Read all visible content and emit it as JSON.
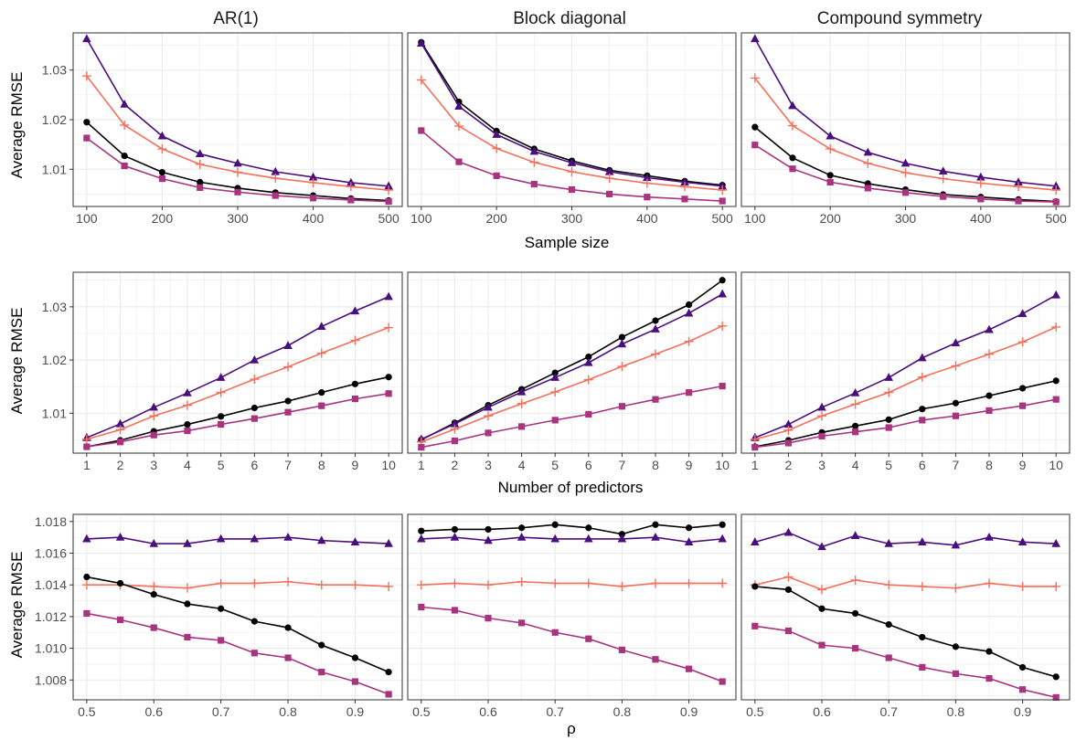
{
  "figure": {
    "column_titles": [
      "AR(1)",
      "Block diagonal",
      "Compound symmetry"
    ],
    "y_axis_title": "Average RMSE"
  },
  "colors": {
    "black_circle": "#000000",
    "purple_triangle": "#4b0f7d",
    "salmon_plus": "#f4705c",
    "magenta_square": "#a8347f",
    "grid": "#ebebeb",
    "panel_border": "#333333"
  },
  "chart_data": [
    {
      "type": "line",
      "row": 0,
      "xlabel": "Sample size",
      "ylabel": "Average RMSE",
      "x": [
        100,
        150,
        200,
        250,
        300,
        350,
        400,
        450,
        500
      ],
      "x_ticks": [
        100,
        200,
        300,
        400,
        500
      ],
      "x_tick_labels": [
        "100",
        "200",
        "300",
        "400",
        "500"
      ],
      "xlim": [
        100,
        500
      ],
      "y_ticks": [
        1.01,
        1.02,
        1.03
      ],
      "y_tick_labels": [
        "1.01",
        "1.02",
        "1.03"
      ],
      "ylim": [
        1.0025,
        1.0375
      ],
      "panels": [
        {
          "title": "AR(1)",
          "series": [
            {
              "marker": "triangle",
              "color": "#4b0f7d",
              "values": [
                1.0363,
                1.0231,
                1.0167,
                1.0131,
                1.0112,
                1.0095,
                1.0084,
                1.0073,
                1.0066
              ]
            },
            {
              "marker": "plus",
              "color": "#f4705c",
              "values": [
                1.0288,
                1.0189,
                1.0141,
                1.011,
                1.0094,
                1.0082,
                1.0073,
                1.0065,
                1.0058
              ]
            },
            {
              "marker": "circle",
              "color": "#000000",
              "values": [
                1.0195,
                1.0127,
                1.0094,
                1.0074,
                1.0062,
                1.0053,
                1.0047,
                1.0041,
                1.0037
              ]
            },
            {
              "marker": "square",
              "color": "#a8347f",
              "values": [
                1.0163,
                1.0107,
                1.0081,
                1.0063,
                1.0054,
                1.0047,
                1.0042,
                1.0038,
                1.0035
              ]
            }
          ]
        },
        {
          "title": "Block diagonal",
          "series": [
            {
              "marker": "circle",
              "color": "#000000",
              "values": [
                1.0356,
                1.0236,
                1.0177,
                1.0141,
                1.0117,
                1.0098,
                1.0087,
                1.0076,
                1.0068
              ]
            },
            {
              "marker": "triangle",
              "color": "#4b0f7d",
              "values": [
                1.0354,
                1.0227,
                1.017,
                1.0136,
                1.0113,
                1.0095,
                1.0083,
                1.0074,
                1.0066
              ]
            },
            {
              "marker": "plus",
              "color": "#f4705c",
              "values": [
                1.028,
                1.0187,
                1.0142,
                1.0114,
                1.0095,
                1.0082,
                1.0072,
                1.0065,
                1.0058
              ]
            },
            {
              "marker": "square",
              "color": "#a8347f",
              "values": [
                1.0178,
                1.0115,
                1.0087,
                1.007,
                1.0059,
                1.005,
                1.0044,
                1.004,
                1.0036
              ]
            }
          ]
        },
        {
          "title": "Compound symmetry",
          "series": [
            {
              "marker": "triangle",
              "color": "#4b0f7d",
              "values": [
                1.0363,
                1.0228,
                1.0167,
                1.0134,
                1.0112,
                1.0096,
                1.0084,
                1.0074,
                1.0066
              ]
            },
            {
              "marker": "plus",
              "color": "#f4705c",
              "values": [
                1.0284,
                1.0188,
                1.0141,
                1.0112,
                1.0093,
                1.0081,
                1.0072,
                1.0065,
                1.0058
              ]
            },
            {
              "marker": "circle",
              "color": "#000000",
              "values": [
                1.0185,
                1.0123,
                1.0088,
                1.0071,
                1.0059,
                1.0049,
                1.0044,
                1.0039,
                1.0035
              ]
            },
            {
              "marker": "square",
              "color": "#a8347f",
              "values": [
                1.0149,
                1.0101,
                1.0074,
                1.0062,
                1.0053,
                1.0045,
                1.004,
                1.0036,
                1.0034
              ]
            }
          ]
        }
      ]
    },
    {
      "type": "line",
      "row": 1,
      "xlabel": "Number of predictors",
      "ylabel": "Average RMSE",
      "x": [
        1,
        2,
        3,
        4,
        5,
        6,
        7,
        8,
        9,
        10
      ],
      "x_ticks": [
        1,
        2,
        3,
        4,
        5,
        6,
        7,
        8,
        9,
        10
      ],
      "x_tick_labels": [
        "1",
        "2",
        "3",
        "4",
        "5",
        "6",
        "7",
        "8",
        "9",
        "10"
      ],
      "xlim": [
        1,
        10
      ],
      "y_ticks": [
        1.01,
        1.02,
        1.03
      ],
      "y_tick_labels": [
        "1.01",
        "1.02",
        "1.03"
      ],
      "ylim": [
        1.0025,
        1.0365
      ],
      "panels": [
        {
          "series": [
            {
              "marker": "triangle",
              "color": "#4b0f7d",
              "values": [
                1.0054,
                1.008,
                1.0111,
                1.0138,
                1.0167,
                1.02,
                1.0227,
                1.0263,
                1.0292,
                1.0319
              ]
            },
            {
              "marker": "plus",
              "color": "#f4705c",
              "values": [
                1.0051,
                1.0069,
                1.0095,
                1.0115,
                1.0139,
                1.0164,
                1.0187,
                1.0213,
                1.0237,
                1.0261
              ]
            },
            {
              "marker": "circle",
              "color": "#000000",
              "values": [
                1.0037,
                1.0049,
                1.0066,
                1.0079,
                1.0094,
                1.011,
                1.0123,
                1.0139,
                1.0155,
                1.0168
              ]
            },
            {
              "marker": "square",
              "color": "#a8347f",
              "values": [
                1.0037,
                1.0046,
                1.0059,
                1.0067,
                1.0079,
                1.009,
                1.0102,
                1.0114,
                1.0127,
                1.0137
              ]
            }
          ]
        },
        {
          "series": [
            {
              "marker": "circle",
              "color": "#000000",
              "values": [
                1.005,
                1.0082,
                1.0115,
                1.0145,
                1.0176,
                1.0206,
                1.0243,
                1.0274,
                1.0304,
                1.035
              ]
            },
            {
              "marker": "triangle",
              "color": "#4b0f7d",
              "values": [
                1.0051,
                1.008,
                1.0111,
                1.014,
                1.0167,
                1.0195,
                1.023,
                1.0258,
                1.0288,
                1.0324
              ]
            },
            {
              "marker": "plus",
              "color": "#f4705c",
              "values": [
                1.0046,
                1.007,
                1.0095,
                1.0118,
                1.014,
                1.0163,
                1.0188,
                1.0211,
                1.0235,
                1.0264
              ]
            },
            {
              "marker": "square",
              "color": "#a8347f",
              "values": [
                1.0036,
                1.0048,
                1.0063,
                1.0075,
                1.0087,
                1.0098,
                1.0113,
                1.0126,
                1.0139,
                1.0151
              ]
            }
          ]
        },
        {
          "series": [
            {
              "marker": "triangle",
              "color": "#4b0f7d",
              "values": [
                1.0054,
                1.0079,
                1.0111,
                1.0138,
                1.0167,
                1.0204,
                1.0232,
                1.0257,
                1.0287,
                1.0322
              ]
            },
            {
              "marker": "plus",
              "color": "#f4705c",
              "values": [
                1.0051,
                1.0068,
                1.0095,
                1.0117,
                1.0139,
                1.0168,
                1.0189,
                1.0211,
                1.0234,
                1.0262
              ]
            },
            {
              "marker": "circle",
              "color": "#000000",
              "values": [
                1.0037,
                1.0049,
                1.0064,
                1.0076,
                1.0088,
                1.0108,
                1.0119,
                1.0133,
                1.0147,
                1.0161
              ]
            },
            {
              "marker": "square",
              "color": "#a8347f",
              "values": [
                1.0036,
                1.0044,
                1.0057,
                1.0065,
                1.0073,
                1.0087,
                1.0095,
                1.0105,
                1.0114,
                1.0126
              ]
            }
          ]
        }
      ]
    },
    {
      "type": "line",
      "row": 2,
      "xlabel": "ρ",
      "ylabel": "Average RMSE",
      "x": [
        0.5,
        0.55,
        0.6,
        0.65,
        0.7,
        0.75,
        0.8,
        0.85,
        0.9,
        0.95
      ],
      "x_ticks": [
        0.5,
        0.6,
        0.7,
        0.8,
        0.9
      ],
      "x_tick_labels": [
        "0.5",
        "0.6",
        "0.7",
        "0.8",
        "0.9"
      ],
      "xlim": [
        0.5,
        0.95
      ],
      "y_ticks": [
        1.008,
        1.01,
        1.012,
        1.014,
        1.016,
        1.018
      ],
      "y_tick_labels": [
        "1.008",
        "1.010",
        "1.012",
        "1.014",
        "1.016",
        "1.018"
      ],
      "ylim": [
        1.00675,
        1.01845
      ],
      "panels": [
        {
          "series": [
            {
              "marker": "triangle",
              "color": "#4b0f7d",
              "values": [
                1.0169,
                1.017,
                1.0166,
                1.0166,
                1.0169,
                1.0169,
                1.017,
                1.0168,
                1.0167,
                1.0166
              ]
            },
            {
              "marker": "plus",
              "color": "#f4705c",
              "values": [
                1.014,
                1.014,
                1.0139,
                1.0138,
                1.0141,
                1.0141,
                1.0142,
                1.014,
                1.014,
                1.0139
              ]
            },
            {
              "marker": "circle",
              "color": "#000000",
              "values": [
                1.0145,
                1.0141,
                1.0134,
                1.0128,
                1.0125,
                1.0117,
                1.0113,
                1.0102,
                1.0094,
                1.0085
              ]
            },
            {
              "marker": "square",
              "color": "#a8347f",
              "values": [
                1.0122,
                1.0118,
                1.0113,
                1.0107,
                1.0105,
                1.0097,
                1.0094,
                1.0085,
                1.0079,
                1.0071
              ]
            }
          ]
        },
        {
          "series": [
            {
              "marker": "circle",
              "color": "#000000",
              "values": [
                1.0174,
                1.0175,
                1.0175,
                1.0176,
                1.0178,
                1.0176,
                1.0172,
                1.0178,
                1.0176,
                1.0178
              ]
            },
            {
              "marker": "triangle",
              "color": "#4b0f7d",
              "values": [
                1.0169,
                1.017,
                1.0168,
                1.017,
                1.0169,
                1.0169,
                1.0169,
                1.017,
                1.0167,
                1.0169
              ]
            },
            {
              "marker": "plus",
              "color": "#f4705c",
              "values": [
                1.014,
                1.0141,
                1.014,
                1.0142,
                1.0141,
                1.0141,
                1.0139,
                1.0141,
                1.0141,
                1.0141
              ]
            },
            {
              "marker": "square",
              "color": "#a8347f",
              "values": [
                1.0126,
                1.0124,
                1.0119,
                1.0116,
                1.011,
                1.0106,
                1.0099,
                1.0093,
                1.0087,
                1.0079
              ]
            }
          ]
        },
        {
          "series": [
            {
              "marker": "triangle",
              "color": "#4b0f7d",
              "values": [
                1.0167,
                1.0173,
                1.0164,
                1.0171,
                1.0166,
                1.0167,
                1.0165,
                1.017,
                1.0167,
                1.0166
              ]
            },
            {
              "marker": "plus",
              "color": "#f4705c",
              "values": [
                1.014,
                1.0145,
                1.0137,
                1.0143,
                1.014,
                1.0139,
                1.0138,
                1.0141,
                1.0139,
                1.0139
              ]
            },
            {
              "marker": "circle",
              "color": "#000000",
              "values": [
                1.0139,
                1.0137,
                1.0125,
                1.0122,
                1.0115,
                1.0107,
                1.0101,
                1.0098,
                1.0088,
                1.0082
              ]
            },
            {
              "marker": "square",
              "color": "#a8347f",
              "values": [
                1.0114,
                1.0111,
                1.0102,
                1.01,
                1.0094,
                1.0088,
                1.0084,
                1.0081,
                1.0074,
                1.0069
              ]
            }
          ]
        }
      ]
    }
  ]
}
